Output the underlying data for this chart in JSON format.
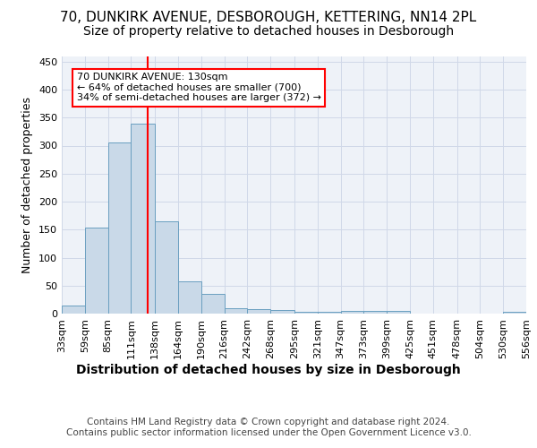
{
  "title1": "70, DUNKIRK AVENUE, DESBOROUGH, KETTERING, NN14 2PL",
  "title2": "Size of property relative to detached houses in Desborough",
  "xlabel": "Distribution of detached houses by size in Desborough",
  "ylabel": "Number of detached properties",
  "bar_edges": [
    33,
    59,
    85,
    111,
    138,
    164,
    190,
    216,
    242,
    268,
    295,
    321,
    347,
    373,
    399,
    425,
    451,
    478,
    504,
    530,
    556
  ],
  "bar_heights": [
    15,
    153,
    305,
    340,
    165,
    57,
    35,
    10,
    8,
    6,
    4,
    3,
    5,
    5,
    5,
    0,
    0,
    0,
    0,
    4
  ],
  "bar_color": "#c9d9e8",
  "bar_edgecolor": "#6a9fc0",
  "vline_x": 130,
  "vline_color": "red",
  "annotation_text": "70 DUNKIRK AVENUE: 130sqm\n← 64% of detached houses are smaller (700)\n34% of semi-detached houses are larger (372) →",
  "annotation_box_color": "white",
  "annotation_box_edgecolor": "red",
  "ylim": [
    0,
    460
  ],
  "tick_labels": [
    "33sqm",
    "59sqm",
    "85sqm",
    "111sqm",
    "138sqm",
    "164sqm",
    "190sqm",
    "216sqm",
    "242sqm",
    "268sqm",
    "295sqm",
    "321sqm",
    "347sqm",
    "373sqm",
    "399sqm",
    "425sqm",
    "451sqm",
    "478sqm",
    "504sqm",
    "530sqm",
    "556sqm"
  ],
  "footnote": "Contains HM Land Registry data © Crown copyright and database right 2024.\nContains public sector information licensed under the Open Government Licence v3.0.",
  "grid_color": "#d0d8e8",
  "bg_color": "#eef2f8",
  "title1_fontsize": 11,
  "title2_fontsize": 10,
  "xlabel_fontsize": 10,
  "ylabel_fontsize": 9,
  "tick_fontsize": 8,
  "footnote_fontsize": 7.5,
  "yticks": [
    0,
    50,
    100,
    150,
    200,
    250,
    300,
    350,
    400,
    450
  ]
}
